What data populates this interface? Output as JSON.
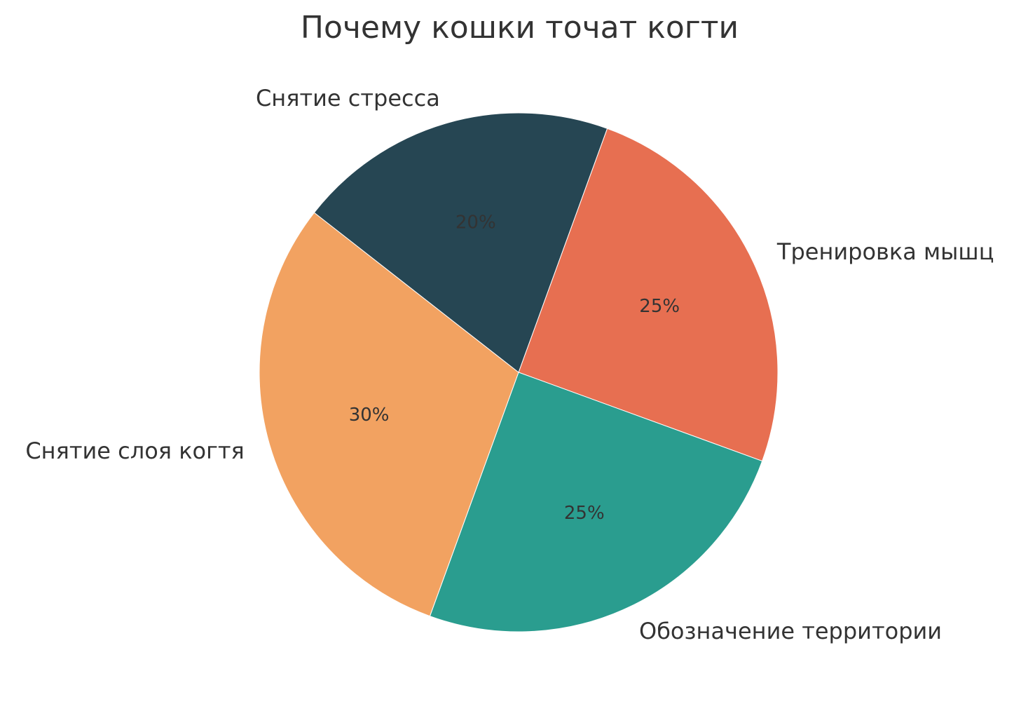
{
  "chart_data": {
    "type": "pie",
    "title": "Почему кошки точат когти",
    "categories": [
      "Тренировка мышц",
      "Обозначение территории",
      "Снятие слоя когтя",
      "Снятие стресса"
    ],
    "values": [
      25,
      25,
      30,
      20
    ],
    "value_labels": [
      "25%",
      "25%",
      "30%",
      "20%"
    ],
    "colors": [
      "#E76F51",
      "#2A9D8F",
      "#F2A261",
      "#264653"
    ],
    "start_angle_deg": 70,
    "direction": "clockwise",
    "legend": "none"
  }
}
